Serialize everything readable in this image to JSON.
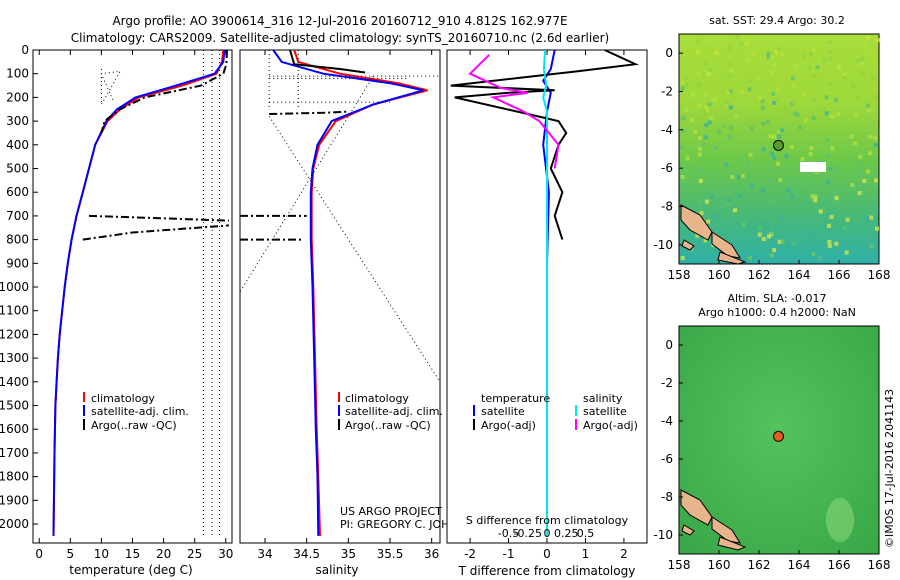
{
  "header": {
    "title_line1": "Argo profile: AO 3900614_316 12-Jul-2016 20160712_910 4.812S 162.977E",
    "title_line2": "Climatology: CARS2009. Satellite-adjusted climatology: synTS_20160710.nc (2.6d earlier)"
  },
  "colors": {
    "climatology": "#ff0000",
    "satellite_adj": "#0000ff",
    "argo": "#000000",
    "satellite_salinity": "#00e5ee",
    "argo_salinity_diff": "#ff00ff",
    "land": "#e8b48c",
    "float_marker_sst": "#5a9e2a",
    "float_marker_sla": "#e0601a"
  },
  "icons": {
    "float_marker": "circle-marker-icon"
  },
  "chart_data": [
    {
      "id": "temperature",
      "type": "line",
      "xlabel": "temperature (deg C)",
      "ylabel": "",
      "xlim": [
        -1,
        31
      ],
      "ylim": [
        2080,
        0
      ],
      "xticks": [
        0,
        5,
        10,
        15,
        20,
        25,
        30
      ],
      "yticks": [
        0,
        100,
        200,
        300,
        400,
        500,
        600,
        700,
        800,
        900,
        1000,
        1100,
        1200,
        1300,
        1400,
        1500,
        1600,
        1700,
        1800,
        1900,
        2000
      ],
      "legend": [
        "climatology",
        "satellite-adj. clim.",
        "Argo(..raw -QC)"
      ],
      "legend_position": "bottom-center",
      "series": [
        {
          "name": "climatology",
          "color": "red",
          "style": "solid",
          "x": [
            29.6,
            29.4,
            28.5,
            23,
            16,
            13,
            11,
            9,
            8,
            7,
            6,
            5.2,
            4.6,
            4.1,
            3.7,
            3.3,
            3.0,
            2.8,
            2.6,
            2.45,
            2.3
          ],
          "y": [
            0,
            50,
            100,
            150,
            200,
            250,
            300,
            400,
            500,
            600,
            700,
            800,
            900,
            1000,
            1100,
            1200,
            1300,
            1400,
            1500,
            1700,
            2050
          ]
        },
        {
          "name": "satellite-adj. clim.",
          "color": "blue",
          "style": "solid",
          "x": [
            29.8,
            29.6,
            28.2,
            22,
            15.5,
            12.5,
            10.8,
            9,
            8,
            7,
            6,
            5.2,
            4.6,
            4.1,
            3.7,
            3.3,
            3.0,
            2.8,
            2.6,
            2.45,
            2.3
          ],
          "y": [
            0,
            50,
            100,
            150,
            200,
            250,
            300,
            400,
            500,
            600,
            700,
            800,
            900,
            1000,
            1100,
            1200,
            1300,
            1400,
            1500,
            1700,
            2050
          ]
        },
        {
          "name": "Argo(..raw -QC)",
          "color": "black",
          "style": "dashdot",
          "x": [
            30.2,
            30.1,
            29.6,
            26,
            17,
            13,
            10.5,
            10
          ],
          "y": [
            0,
            60,
            100,
            150,
            200,
            250,
            300,
            350
          ]
        },
        {
          "name": "Argo step 700",
          "color": "black",
          "style": "dashdot",
          "x": [
            8,
            20,
            30.5
          ],
          "y": [
            700,
            710,
            720
          ]
        },
        {
          "name": "Argo step 800",
          "color": "black",
          "style": "dashdot",
          "x": [
            7,
            15,
            30.5
          ],
          "y": [
            800,
            770,
            740
          ]
        },
        {
          "name": "raw dotted a",
          "color": "black",
          "style": "dotted",
          "x": [
            26.4,
            26.4
          ],
          "y": [
            0,
            2050
          ]
        },
        {
          "name": "raw dotted b",
          "color": "black",
          "style": "dotted",
          "x": [
            27.8,
            27.8
          ],
          "y": [
            0,
            2050
          ]
        },
        {
          "name": "raw dotted c",
          "color": "black",
          "style": "dotted",
          "x": [
            29.0,
            29.0
          ],
          "y": [
            0,
            2050
          ]
        },
        {
          "name": "raw dotted d",
          "color": "black",
          "style": "dotted",
          "x": [
            10,
            10,
            13,
            10,
            12
          ],
          "y": [
            80,
            230,
            90,
            100,
            220
          ]
        }
      ]
    },
    {
      "id": "salinity",
      "type": "line",
      "xlabel": "salinity",
      "xlim": [
        33.7,
        36.1
      ],
      "ylim": [
        2080,
        0
      ],
      "xticks": [
        34,
        34.5,
        35,
        35.5,
        36
      ],
      "legend": [
        "climatology",
        "satellite-adj. clim.",
        "Argo(..raw -QC)"
      ],
      "legend_position": "bottom-right",
      "series": [
        {
          "name": "climatology",
          "color": "red",
          "style": "solid",
          "x": [
            34.35,
            34.4,
            34.9,
            35.6,
            35.95,
            35.3,
            34.85,
            34.65,
            34.58,
            34.56,
            34.56,
            34.58,
            34.6,
            34.62,
            34.64,
            34.66
          ],
          "y": [
            0,
            50,
            100,
            140,
            170,
            230,
            300,
            400,
            500,
            600,
            800,
            1000,
            1300,
            1600,
            1800,
            2050
          ]
        },
        {
          "name": "satellite-adj. clim.",
          "color": "blue",
          "style": "solid",
          "x": [
            34.1,
            34.2,
            34.7,
            35.5,
            35.9,
            35.3,
            34.8,
            34.63,
            34.57,
            34.55,
            34.55,
            34.57,
            34.59,
            34.61,
            34.63,
            34.64
          ],
          "y": [
            0,
            50,
            100,
            140,
            170,
            230,
            300,
            400,
            500,
            600,
            800,
            1000,
            1300,
            1600,
            1800,
            2050
          ]
        },
        {
          "name": "Argo(..raw -QC)",
          "color": "black",
          "style": "solid",
          "x": [
            34.3,
            34.35,
            34.9,
            35.2
          ],
          "y": [
            0,
            60,
            80,
            95
          ]
        },
        {
          "name": "Argo dashdot 270",
          "color": "black",
          "style": "dashdot",
          "x": [
            34.05,
            34.7,
            35.0
          ],
          "y": [
            270,
            265,
            260
          ]
        },
        {
          "name": "Argo dashdot 700",
          "color": "black",
          "style": "dashdot",
          "x": [
            33.7,
            34.5
          ],
          "y": [
            700,
            700
          ]
        },
        {
          "name": "Argo dashdot 800",
          "color": "black",
          "style": "dashdot",
          "x": [
            33.7,
            34.45
          ],
          "y": [
            800,
            800
          ]
        },
        {
          "name": "raw dotted top",
          "color": "black",
          "style": "dotted",
          "x": [
            34.05,
            36.1
          ],
          "y": [
            110,
            110
          ]
        },
        {
          "name": "raw dotted 120",
          "color": "black",
          "style": "dotted",
          "x": [
            34.05,
            35.7
          ],
          "y": [
            120,
            120
          ]
        },
        {
          "name": "raw dotted 220",
          "color": "black",
          "style": "dotted",
          "x": [
            34.05,
            35.5
          ],
          "y": [
            220,
            220
          ]
        },
        {
          "name": "raw dotted diag1",
          "color": "black",
          "style": "dotted",
          "x": [
            34.05,
            36.1
          ],
          "y": [
            280,
            1400
          ]
        },
        {
          "name": "raw dotted diag2",
          "color": "black",
          "style": "dotted",
          "x": [
            35.3,
            33.7
          ],
          "y": [
            110,
            1020
          ]
        },
        {
          "name": "raw dotted vert1",
          "color": "black",
          "style": "dotted",
          "x": [
            34.05,
            34.05
          ],
          "y": [
            0,
            250
          ]
        },
        {
          "name": "raw dotted vert2",
          "color": "black",
          "style": "dotted",
          "x": [
            34.4,
            34.4
          ],
          "y": [
            0,
            250
          ]
        }
      ],
      "annotations": [
        "US ARGO PROJECT",
        "PI: GREGORY C. JOHNSON"
      ]
    },
    {
      "id": "difference",
      "type": "line",
      "xlabel": "T difference from climatology",
      "xlabel_top": "S difference from climatology",
      "xlim": [
        -2.6,
        2.6
      ],
      "ylim": [
        2080,
        0
      ],
      "xticks": [
        -2,
        -1,
        0,
        1,
        2
      ],
      "xticks_top": [
        -0.5,
        -0.25,
        0,
        0.25,
        0.5
      ],
      "legend": [
        "temperature",
        "satellite",
        "Argo(-adj)",
        "salinity",
        "satellite",
        "Argo(-adj)"
      ],
      "series": [
        {
          "name": "temperature satellite",
          "color": "blue",
          "style": "solid",
          "x": [
            0.2,
            0.1,
            -0.1,
            0.1,
            0.0,
            -0.1,
            0.05,
            0.0,
            0.0,
            0.0
          ],
          "y": [
            0,
            80,
            130,
            180,
            260,
            400,
            600,
            900,
            1400,
            2050
          ]
        },
        {
          "name": "temperature Argo",
          "color": "black",
          "style": "solid",
          "x": [
            1.5,
            2.3,
            0.8,
            -2.5,
            0.2,
            -1.0,
            -2.4,
            -0.5,
            0.3,
            0.5,
            0.3,
            0.1,
            0.4,
            0.2,
            0.4
          ],
          "y": [
            0,
            60,
            90,
            150,
            170,
            180,
            200,
            270,
            300,
            350,
            400,
            500,
            600,
            700,
            800
          ]
        },
        {
          "name": "salinity satellite",
          "color": "cyan",
          "style": "solid",
          "x": [
            -0.05,
            -0.08,
            -0.02,
            -0.1,
            0.0,
            0.0,
            0.0,
            0.0
          ],
          "y": [
            0,
            80,
            150,
            200,
            260,
            500,
            1000,
            2050
          ]
        },
        {
          "name": "salinity Argo",
          "color": "magenta",
          "style": "solid",
          "x": [
            -1.5,
            -2.0,
            -1.2,
            -0.5,
            -1.4,
            -0.6,
            -0.2,
            0.3,
            0.2
          ],
          "y": [
            20,
            100,
            160,
            180,
            200,
            260,
            300,
            400,
            500
          ]
        }
      ]
    },
    {
      "id": "sst_map",
      "type": "heatmap",
      "title": "sat. SST: 29.4 Argo: 30.2",
      "xlim": [
        158,
        168
      ],
      "ylim": [
        -11,
        1
      ],
      "xticks": [
        158,
        160,
        162,
        164,
        166,
        168
      ],
      "yticks": [
        0,
        -2,
        -4,
        -6,
        -8,
        -10
      ],
      "float_lon": 162.977,
      "float_lat": -4.812
    },
    {
      "id": "sla_map",
      "type": "heatmap",
      "title_line1": "Altim. SLA: -0.017",
      "title_line2": "Argo h1000: 0.4 h2000: NaN",
      "xlim": [
        158,
        168
      ],
      "ylim": [
        -11,
        1
      ],
      "xticks": [
        158,
        160,
        162,
        164,
        166,
        168
      ],
      "yticks": [
        0,
        -2,
        -4,
        -6,
        -8,
        -10
      ],
      "float_lon": 162.977,
      "float_lat": -4.812
    }
  ],
  "side_note": "©IMOS 17-Jul-2016 2041143"
}
